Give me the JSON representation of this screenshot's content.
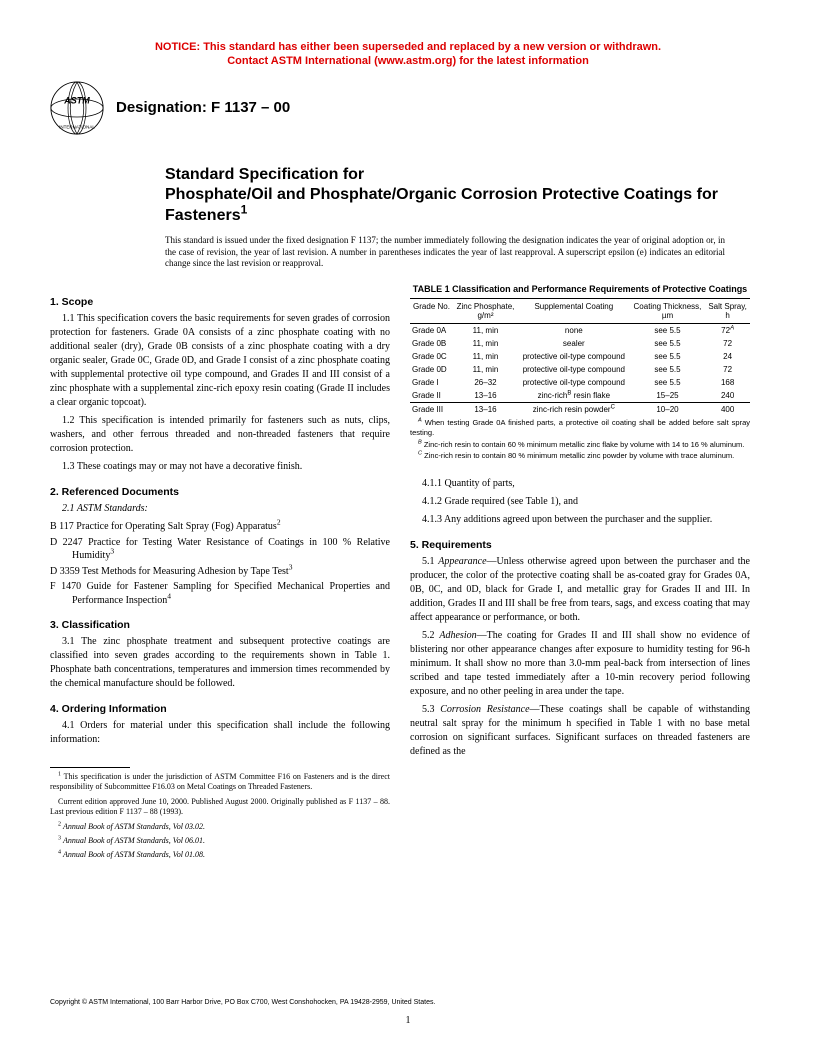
{
  "notice": {
    "line1": "NOTICE: This standard has either been superseded and replaced by a new version or withdrawn.",
    "line2": "Contact ASTM International (www.astm.org) for the latest information"
  },
  "designation": "Designation: F 1137 – 00",
  "title": {
    "line1": "Standard Specification for",
    "line2": "Phosphate/Oil and Phosphate/Organic Corrosion Protective Coatings for Fasteners",
    "sup": "1"
  },
  "subtitle": "This standard is issued under the fixed designation F 1137; the number immediately following the designation indicates the year of original adoption or, in the case of revision, the year of last revision. A number in parentheses indicates the year of last reapproval. A superscript epsilon (e) indicates an editorial change since the last revision or reapproval.",
  "sec1": {
    "head": "1. Scope",
    "p1": "1.1 This specification covers the basic requirements for seven grades of corrosion protection for fasteners. Grade 0A consists of a zinc phosphate coating with no additional sealer (dry), Grade 0B consists of a zinc phosphate coating with a dry organic sealer, Grade 0C, Grade 0D, and Grade I consist of a zinc phosphate coating with supplemental protective oil type compound, and Grades II and III consist of a zinc phosphate with a supplemental zinc-rich epoxy resin coating (Grade II includes a clear organic topcoat).",
    "p2": "1.2 This specification is intended primarily for fasteners such as nuts, clips, washers, and other ferrous threaded and non-threaded fasteners that require corrosion protection.",
    "p3": "1.3 These coatings may or may not have a decorative finish."
  },
  "sec2": {
    "head": "2. Referenced Documents",
    "sub": "2.1 ASTM Standards:",
    "r1": "B 117 Practice for Operating Salt Spray (Fog) Apparatus",
    "r2": "D 2247 Practice for Testing Water Resistance of Coatings in 100 % Relative Humidity",
    "r3": "D 3359 Test Methods for Measuring Adhesion by Tape Test",
    "r4": "F 1470 Guide for Fastener Sampling for Specified Mechanical Properties and Performance Inspection"
  },
  "sec3": {
    "head": "3. Classification",
    "p1": "3.1 The zinc phosphate treatment and subsequent protective coatings are classified into seven grades according to the requirements shown in Table 1. Phosphate bath concentrations, temperatures and immersion times recommended by the chemical manufacture should be followed."
  },
  "sec4": {
    "head": "4. Ordering Information",
    "p1": "4.1 Orders for material under this specification shall include the following information:",
    "p2": "4.1.1 Quantity of parts,",
    "p3": "4.1.2 Grade required (see Table 1), and",
    "p4": "4.1.3 Any additions agreed upon between the purchaser and the supplier."
  },
  "sec5": {
    "head": "5. Requirements",
    "p1": "5.1 Appearance—Unless otherwise agreed upon between the purchaser and the producer, the color of the protective coating shall be as-coated gray for Grades 0A, 0B, 0C, and 0D, black for Grade I, and metallic gray for Grades II and III. In addition, Grades II and III shall be free from tears, sags, and excess coating that may affect appearance or performance, or both.",
    "p2": "5.2 Adhesion—The coating for Grades II and III shall show no evidence of blistering nor other appearance changes after exposure to humidity testing for 96-h minimum. It shall show no more than 3.0-mm peal-back from intersection of lines scribed and tape tested immediately after a 10-min recovery period following exposure, and no other peeling in area under the tape.",
    "p3": "5.3 Corrosion Resistance—These coatings shall be capable of withstanding neutral salt spray for the minimum h specified in Table 1 with no base metal corrosion on significant surfaces. Significant surfaces on threaded fasteners are defined as the"
  },
  "table": {
    "title": "TABLE 1  Classification and Performance Requirements of Protective Coatings",
    "cols": [
      "Grade No.",
      "Zinc Phosphate, g/m²",
      "Supplemental Coating",
      "Coating Thickness, µm",
      "Salt Spray, h"
    ],
    "rows": [
      [
        "Grade 0A",
        "11, min",
        "none",
        "see 5.5",
        "72"
      ],
      [
        "Grade 0B",
        "11, min",
        "sealer",
        "see 5.5",
        "72"
      ],
      [
        "Grade 0C",
        "11, min",
        "protective oil-type compound",
        "see 5.5",
        "24"
      ],
      [
        "Grade 0D",
        "11, min",
        "protective oil-type compound",
        "see 5.5",
        "72"
      ],
      [
        "Grade I",
        "26–32",
        "protective oil-type compound",
        "see 5.5",
        "168"
      ],
      [
        "Grade II",
        "13–16",
        "zinc-rich<sup>B</sup> resin flake",
        "15–25",
        "240"
      ],
      [
        "Grade III",
        "13–16",
        "zinc-rich resin powder<sup>C</sup>",
        "10–20",
        "400"
      ]
    ],
    "fnA": "When testing Grade 0A finished parts, a protective oil coating shall be added before salt spray testing.",
    "fnB": "Zinc-rich resin to contain 60 % minimum metallic zinc flake by volume with 14 to 16 % aluminum.",
    "fnC": "Zinc-rich resin to contain 80 % minimum metallic zinc powder by volume with trace aluminum."
  },
  "footnotes": {
    "f1": "This specification is under the jurisdiction of ASTM Committee F16 on Fasteners and is the direct responsibility of Subcommittee F16.03 on Metal Coatings on Threaded Fasteners.",
    "f1b": "Current edition approved June 10, 2000. Published August 2000. Originally published as F 1137 – 88. Last previous edition F 1137 – 88 (1993).",
    "f2": "Annual Book of ASTM Standards, Vol 03.02.",
    "f3": "Annual Book of ASTM Standards, Vol 06.01.",
    "f4": "Annual Book of ASTM Standards, Vol 01.08."
  },
  "copyright": "Copyright © ASTM International, 100 Barr Harbor Drive, PO Box C700, West Conshohocken, PA 19428-2959, United States.",
  "pagenum": "1"
}
